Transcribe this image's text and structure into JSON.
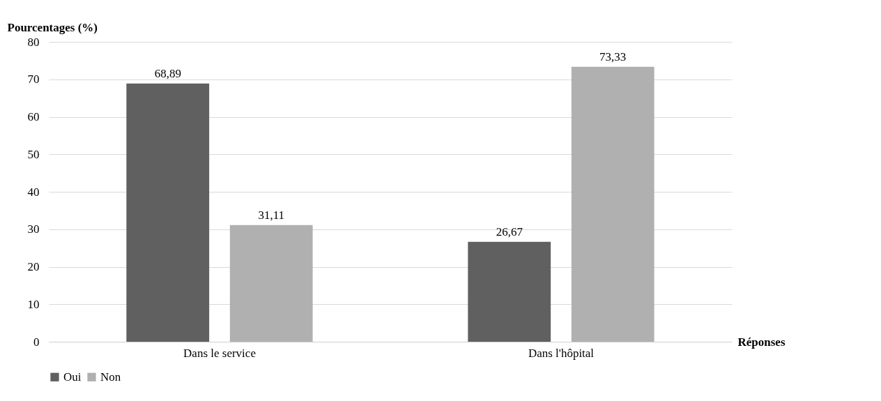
{
  "chart_data": {
    "type": "bar",
    "xlabel": "Réponses",
    "ylabel": "Pourcentages (%)",
    "categories": [
      "Dans le service",
      "Dans l'hôpital"
    ],
    "series": [
      {
        "name": "Oui",
        "color": "#606060",
        "values": [
          68.89,
          26.67
        ],
        "value_labels": [
          "68,89",
          "26,67"
        ]
      },
      {
        "name": "Non",
        "color": "#b0b0b0",
        "values": [
          31.11,
          73.33
        ],
        "value_labels": [
          "31,11",
          "73,33"
        ]
      }
    ],
    "ylim": [
      0,
      80
    ],
    "yticks": [
      0,
      10,
      20,
      30,
      40,
      50,
      60,
      70,
      80
    ],
    "grid": "y",
    "legend": "bottom"
  }
}
